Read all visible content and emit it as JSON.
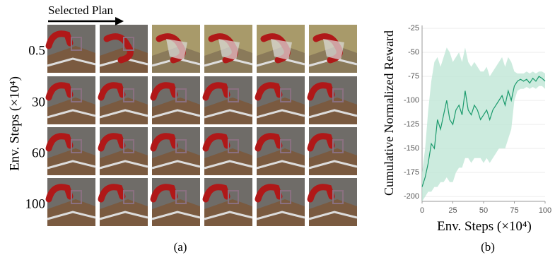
{
  "figure_a": {
    "arrow_label": "Selected Plan",
    "row_axis_label": "Env. Steps (×10⁴)",
    "row_labels": [
      "0.5",
      "30",
      "60",
      "100"
    ],
    "caption": "(a)"
  },
  "chart_data": {
    "type": "line",
    "x_label": "Env. Steps (×10⁴)",
    "y_label": "Cumulative Normalized Reward",
    "caption": "(b)",
    "x": [
      0,
      2.5,
      5,
      7.5,
      10,
      12.5,
      15,
      17.5,
      20,
      22.5,
      25,
      27.5,
      30,
      32.5,
      35,
      37.5,
      40,
      42.5,
      45,
      47.5,
      50,
      52.5,
      55,
      57.5,
      60,
      62.5,
      65,
      67.5,
      70,
      72.5,
      75,
      77.5,
      80,
      82.5,
      85,
      87.5,
      90,
      92.5,
      95,
      97.5,
      100
    ],
    "series": [
      {
        "color": "#1a9a6c",
        "band_color": "#bfe6d6",
        "values": [
          -190,
          -180,
          -165,
          -145,
          -150,
          -120,
          -130,
          -115,
          -100,
          -120,
          -125,
          -110,
          -105,
          -115,
          -90,
          -110,
          -115,
          -105,
          -110,
          -120,
          -115,
          -110,
          -120,
          -110,
          -105,
          -100,
          -95,
          -105,
          -90,
          -100,
          -85,
          -80,
          -78,
          -80,
          -78,
          -82,
          -77,
          -80,
          -75,
          -77,
          -80
        ],
        "upper": [
          -175,
          -150,
          -110,
          -80,
          -60,
          -55,
          -65,
          -55,
          -45,
          -50,
          -60,
          -55,
          -50,
          -60,
          -45,
          -60,
          -65,
          -60,
          -65,
          -70,
          -70,
          -65,
          -75,
          -70,
          -65,
          -60,
          -55,
          -65,
          -55,
          -60,
          -70,
          -72,
          -72,
          -72,
          -70,
          -72,
          -70,
          -72,
          -70,
          -70,
          -72
        ],
        "lower": [
          -205,
          -200,
          -195,
          -195,
          -190,
          -190,
          -185,
          -185,
          -180,
          -185,
          -185,
          -175,
          -170,
          -170,
          -160,
          -160,
          -165,
          -160,
          -160,
          -160,
          -165,
          -160,
          -165,
          -160,
          -155,
          -150,
          -150,
          -150,
          -140,
          -130,
          -100,
          -90,
          -88,
          -88,
          -86,
          -88,
          -86,
          -88,
          -85,
          -85,
          -88
        ]
      }
    ],
    "xlim": [
      0,
      100
    ],
    "ylim": [
      -205,
      -22
    ],
    "xticks": [
      0,
      25,
      50,
      75,
      100
    ],
    "yticks": [
      -200,
      -175,
      -150,
      -125,
      -100,
      -75,
      -50,
      -25
    ],
    "grid": true
  }
}
